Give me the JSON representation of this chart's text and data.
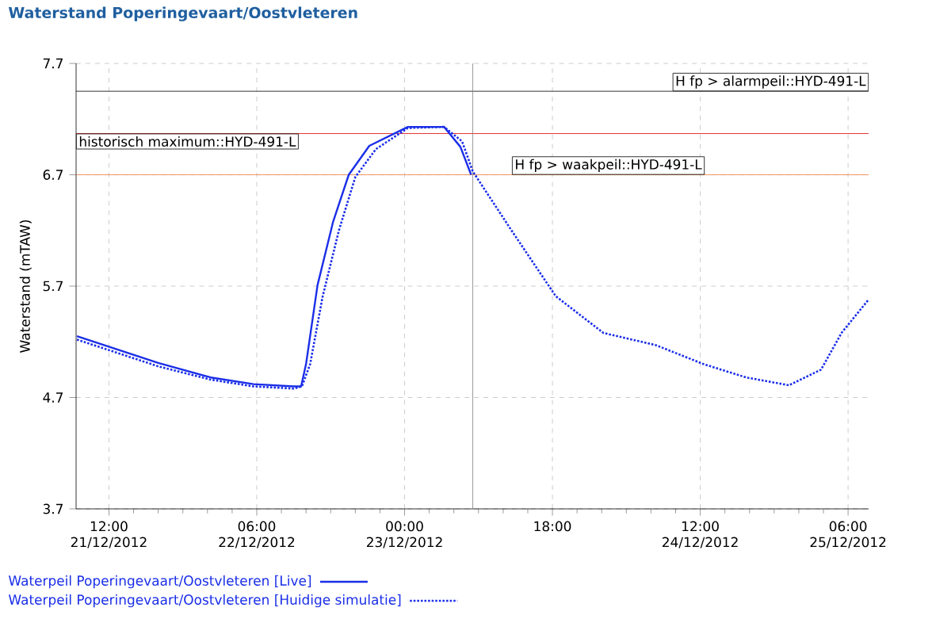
{
  "chart_data": {
    "type": "line",
    "title": "Waterstand Poperingevaart/Oostvleteren",
    "ylabel": "Waterstand (mTAW)",
    "xlim": [
      "2012-12-21T08:00",
      "2012-12-25T08:30"
    ],
    "ylim": [
      3.7,
      7.7
    ],
    "yticks": [
      3.7,
      4.7,
      5.7,
      6.7,
      7.7
    ],
    "xticks": [
      {
        "value": "2012-12-21T12:00",
        "label": "12:00 21/12/2012"
      },
      {
        "value": "2012-12-22T06:00",
        "label": "06:00 22/12/2012"
      },
      {
        "value": "2012-12-23T00:00",
        "label": "00:00 23/12/2012"
      },
      {
        "value": "2012-12-23T18:00",
        "label": "18:00"
      },
      {
        "value": "2012-12-24T12:00",
        "label": "12:00 24/12/2012"
      },
      {
        "value": "2012-12-25T06:00",
        "label": "06:00 25/12/2012"
      }
    ],
    "grid": true,
    "legend": "bottom left",
    "series": [
      {
        "name": "Waterpeil Poperingevaart/Oostvleteren [Live]",
        "color": "#1a2ee8",
        "line_style": "solid",
        "x": [
          "2012-12-21T08:06",
          "2012-12-21T18:00",
          "2012-12-22T00:24",
          "2012-12-22T05:36",
          "2012-12-22T10:30",
          "2012-12-22T11:24",
          "2012-12-22T12:00",
          "2012-12-22T13:24",
          "2012-12-22T15:18",
          "2012-12-22T17:12",
          "2012-12-22T19:42",
          "2012-12-23T00:24",
          "2012-12-23T04:48",
          "2012-12-23T06:48",
          "2012-12-23T08:06"
        ],
        "values": [
          5.25,
          5.01,
          4.88,
          4.82,
          4.8,
          4.8,
          5.0,
          5.71,
          6.28,
          6.7,
          6.96,
          7.13,
          7.13,
          6.95,
          6.7
        ]
      },
      {
        "name": "Waterpeil Poperingevaart/Oostvleteren [Huidige simulatie]",
        "color": "#1a2ee8",
        "line_style": "dotted",
        "x": [
          "2012-12-21T08:06",
          "2012-12-21T18:00",
          "2012-12-22T00:24",
          "2012-12-22T05:36",
          "2012-12-22T10:30",
          "2012-12-22T11:30",
          "2012-12-22T12:30",
          "2012-12-22T14:00",
          "2012-12-22T16:00",
          "2012-12-22T18:00",
          "2012-12-22T20:30",
          "2012-12-23T00:24",
          "2012-12-23T04:48",
          "2012-12-23T07:00",
          "2012-12-23T08:18",
          "2012-12-23T13:12",
          "2012-12-23T18:24",
          "2012-12-24T00:12",
          "2012-12-24T06:36",
          "2012-12-24T12:24",
          "2012-12-24T17:36",
          "2012-12-24T22:48",
          "2012-12-25T02:42",
          "2012-12-25T05:12",
          "2012-12-25T08:30"
        ],
        "values": [
          5.22,
          4.98,
          4.86,
          4.8,
          4.78,
          4.8,
          5.0,
          5.6,
          6.2,
          6.68,
          6.93,
          7.12,
          7.13,
          7.0,
          6.73,
          6.18,
          5.61,
          5.28,
          5.17,
          5.0,
          4.88,
          4.81,
          4.95,
          5.28,
          5.58
        ]
      }
    ],
    "ref_lines": [
      {
        "axis": "y",
        "value": 7.45,
        "label": "H fp > alarmpeil::HYD-491-L",
        "color": "#000000"
      },
      {
        "axis": "y",
        "value": 7.07,
        "label": "historisch maximum::HYD-491-L",
        "color": "#e00000"
      },
      {
        "axis": "y",
        "value": 6.7,
        "label": "H fp > waakpeil::HYD-491-L",
        "color": "#f08040"
      },
      {
        "axis": "x",
        "value": "2012-12-23T08:18",
        "color": "#808080"
      }
    ]
  }
}
